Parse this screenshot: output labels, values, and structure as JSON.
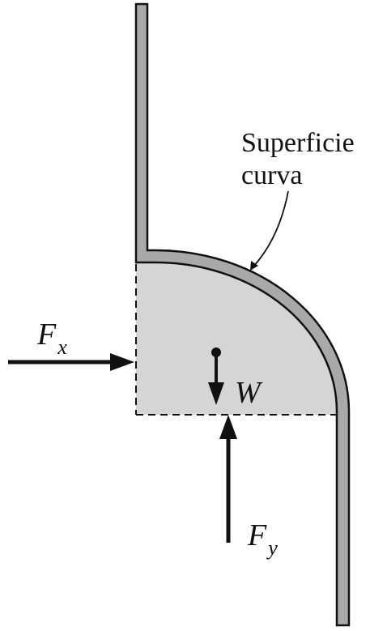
{
  "annotation": {
    "line1": "Superficie",
    "line2": "curva"
  },
  "forces": {
    "horizontal": {
      "symbol": "F",
      "subscript": "x"
    },
    "vertical": {
      "symbol": "F",
      "subscript": "y"
    },
    "weight": {
      "symbol": "W"
    }
  },
  "colors": {
    "wall_fill": "#a9a9a9",
    "fluid_fill": "#d5d5d5",
    "outline": "#111111",
    "background": "#ffffff"
  }
}
